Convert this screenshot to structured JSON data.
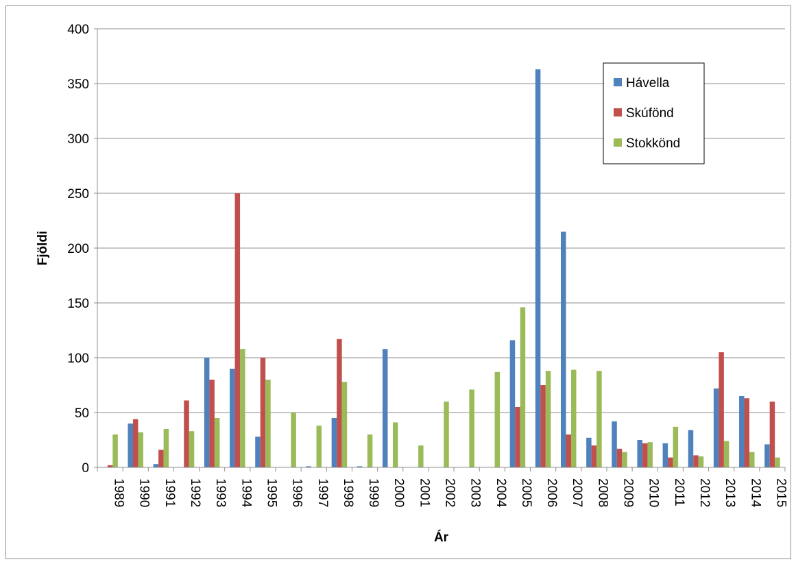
{
  "chart_data": {
    "type": "bar",
    "xlabel": "Ár",
    "ylabel": "Fjöldi",
    "ylim": [
      0,
      400
    ],
    "yticks": [
      0,
      50,
      100,
      150,
      200,
      250,
      300,
      350,
      400
    ],
    "grid": true,
    "legend_position": "top-right",
    "categories": [
      "1989",
      "1990",
      "1991",
      "1992",
      "1993",
      "1994",
      "1995",
      "1996",
      "1997",
      "1998",
      "1999",
      "2000",
      "2001",
      "2002",
      "2003",
      "2004",
      "2005",
      "2006",
      "2007",
      "2008",
      "2009",
      "2010",
      "2011",
      "2012",
      "2013",
      "2014",
      "2015"
    ],
    "series": [
      {
        "name": "Hávella",
        "color": "#4f81bd",
        "values": [
          0,
          40,
          3,
          0,
          100,
          90,
          28,
          0,
          1,
          45,
          1,
          108,
          0,
          0,
          0,
          0,
          116,
          363,
          215,
          27,
          42,
          25,
          22,
          34,
          72,
          65,
          21
        ]
      },
      {
        "name": "Skúfönd",
        "color": "#c0504d",
        "values": [
          2,
          44,
          16,
          61,
          80,
          250,
          100,
          0,
          0,
          117,
          0,
          0,
          0,
          0,
          0,
          0,
          55,
          75,
          30,
          20,
          17,
          22,
          9,
          11,
          105,
          63,
          60
        ]
      },
      {
        "name": "Stokkönd",
        "color": "#9bbb59",
        "values": [
          30,
          32,
          35,
          33,
          45,
          108,
          80,
          50,
          38,
          78,
          30,
          41,
          20,
          60,
          71,
          87,
          146,
          88,
          89,
          88,
          14,
          23,
          37,
          10,
          24,
          14,
          9
        ]
      }
    ]
  }
}
